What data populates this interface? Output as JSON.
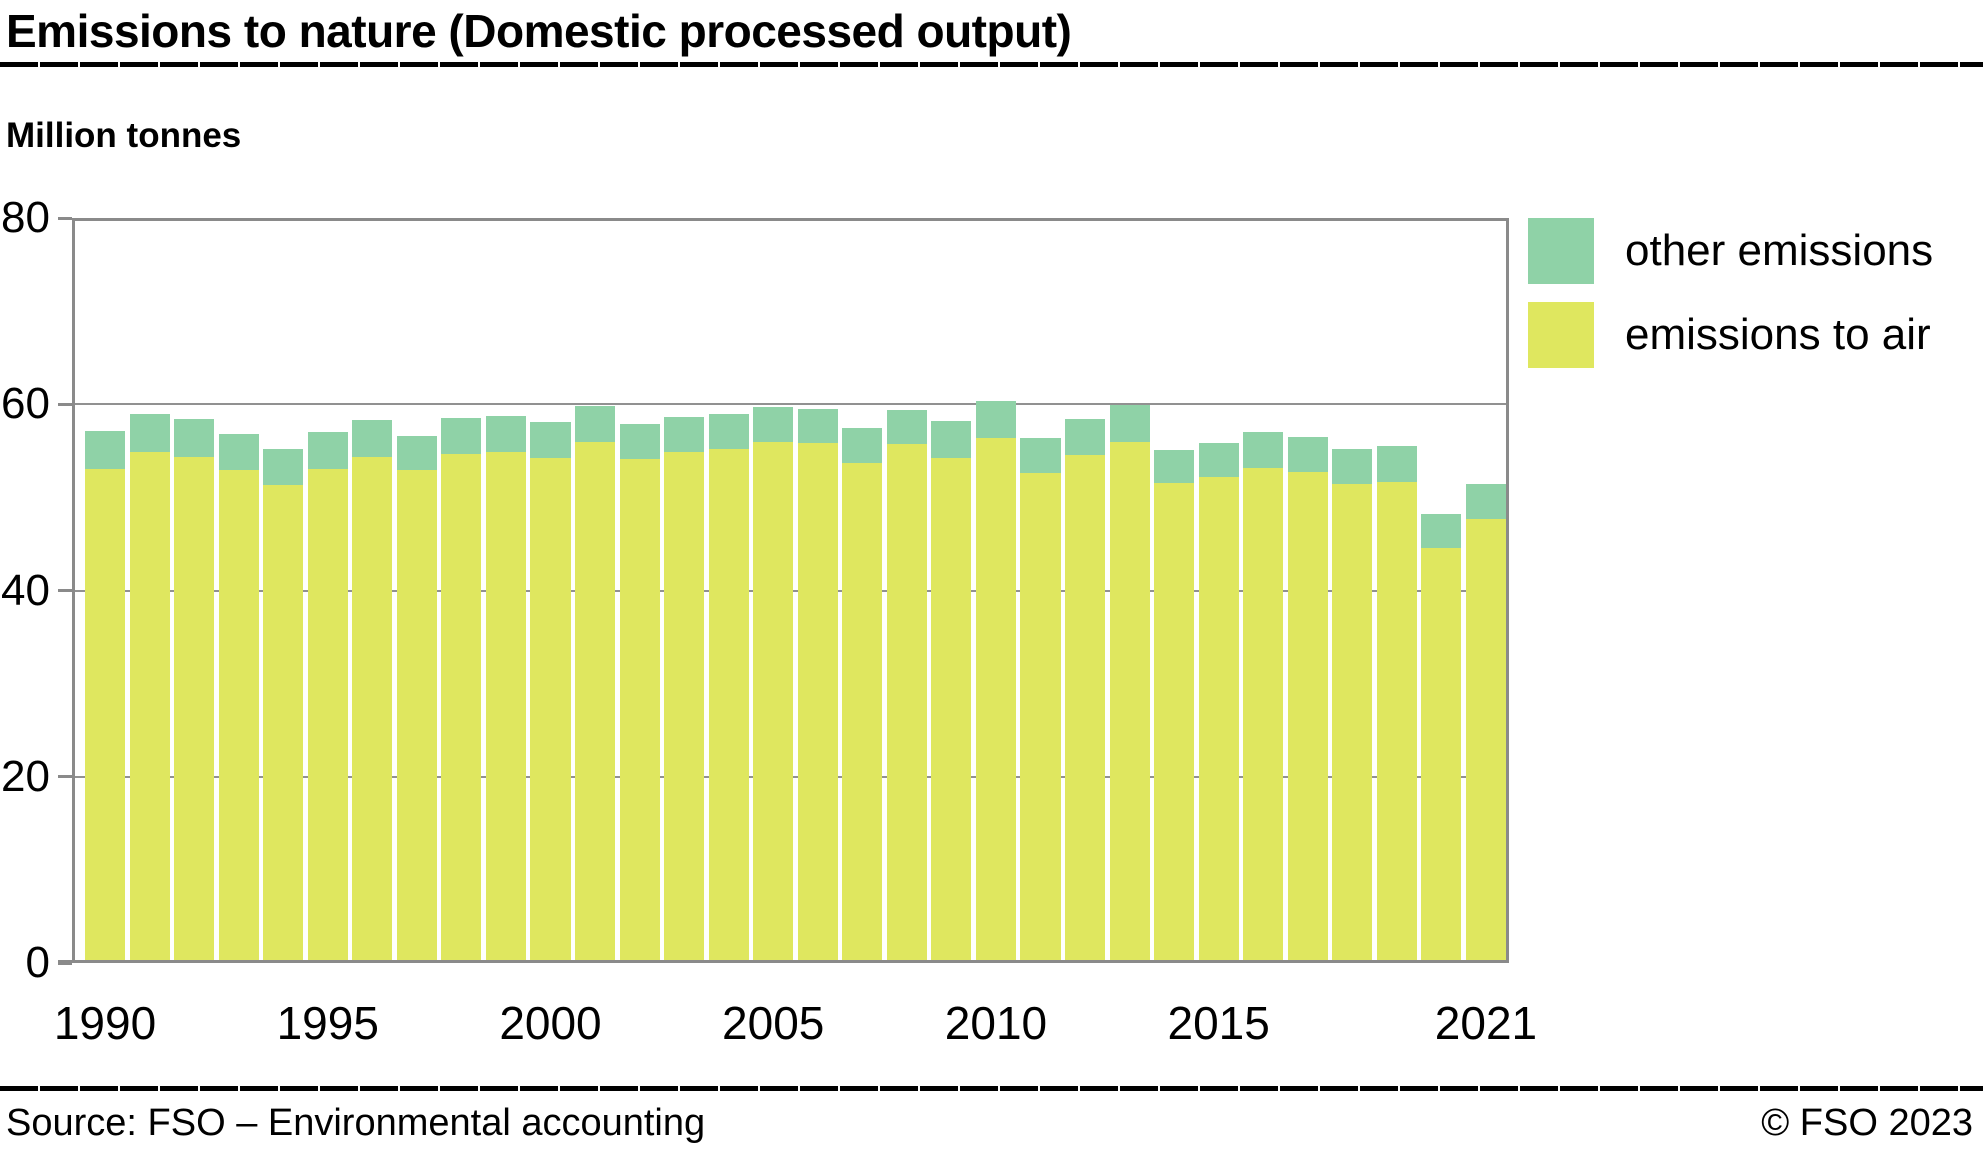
{
  "header": {
    "title": "Emissions to nature (Domestic processed output)",
    "unit_label": "Million tonnes"
  },
  "legend": {
    "items": [
      {
        "label": "other emissions",
        "color": "#8fd2a7"
      },
      {
        "label": "emissions to air",
        "color": "#dfe75f"
      }
    ]
  },
  "chart_data": {
    "type": "bar",
    "stacked": true,
    "title": "Emissions to nature (Domestic processed output)",
    "ylabel": "Million tonnes",
    "ylim": [
      0,
      80
    ],
    "yticks": [
      0,
      20,
      40,
      60,
      80
    ],
    "xticks": [
      1990,
      1995,
      2000,
      2005,
      2010,
      2015,
      2021
    ],
    "grid": true,
    "legend_position": "top-right",
    "categories": [
      1990,
      1991,
      1992,
      1993,
      1994,
      1995,
      1996,
      1997,
      1998,
      1999,
      2000,
      2001,
      2002,
      2003,
      2004,
      2005,
      2006,
      2007,
      2008,
      2009,
      2010,
      2011,
      2012,
      2013,
      2014,
      2015,
      2016,
      2017,
      2018,
      2019,
      2020,
      2021
    ],
    "series": [
      {
        "name": "emissions to air",
        "color": "#dfe75f",
        "values": [
          53.0,
          54.9,
          54.3,
          52.9,
          51.3,
          53.0,
          54.3,
          52.9,
          54.7,
          54.9,
          54.2,
          56.0,
          54.1,
          54.9,
          55.2,
          55.9,
          55.8,
          53.7,
          55.7,
          54.2,
          56.4,
          52.6,
          54.5,
          55.9,
          51.5,
          52.2,
          53.2,
          52.7,
          51.4,
          51.7,
          44.6,
          47.7
        ]
      },
      {
        "name": "other emissions",
        "color": "#8fd2a7",
        "values": [
          4.1,
          4.1,
          4.1,
          3.9,
          3.9,
          4.0,
          4.0,
          3.7,
          3.8,
          3.8,
          3.9,
          3.8,
          3.8,
          3.7,
          3.8,
          3.8,
          3.7,
          3.7,
          3.7,
          4.0,
          4.0,
          3.8,
          3.9,
          4.0,
          3.6,
          3.6,
          3.8,
          3.8,
          3.8,
          3.8,
          3.6,
          3.7
        ]
      }
    ]
  },
  "footer": {
    "source": "Source: FSO – Environmental accounting",
    "copyright": "© FSO 2023"
  }
}
